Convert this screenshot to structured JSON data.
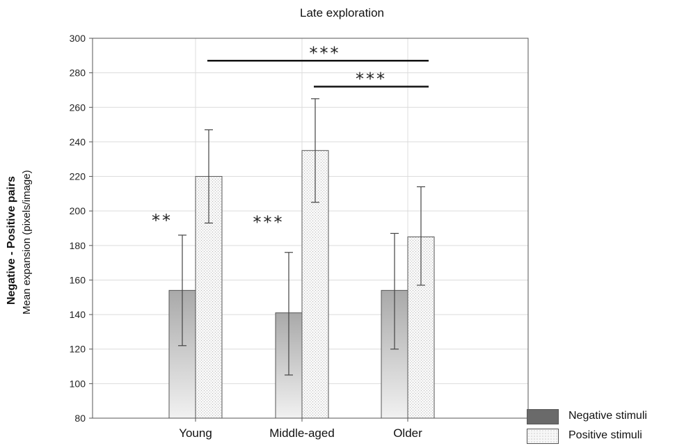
{
  "chart_data": {
    "type": "bar",
    "title": "Late exploration",
    "ylabel_line1": "Negative - Positive pairs",
    "ylabel_line2": "Mean expansion (pixels/image)",
    "xlabel": "",
    "categories": [
      "Young",
      "Middle-aged",
      "Older"
    ],
    "ylim": [
      80,
      300
    ],
    "yticks": [
      80,
      100,
      120,
      140,
      160,
      180,
      200,
      220,
      240,
      260,
      280,
      300
    ],
    "grid": true,
    "legend_position": "bottom-right",
    "series": [
      {
        "name": "Negative stimuli",
        "values": [
          154,
          141,
          154
        ],
        "error_low": [
          122,
          105,
          120
        ],
        "error_high": [
          186,
          176,
          187
        ],
        "color": "#666666"
      },
      {
        "name": "Positive stimuli",
        "values": [
          220,
          235,
          185
        ],
        "error_low": [
          193,
          205,
          157
        ],
        "error_high": [
          247,
          265,
          214
        ],
        "color": "#f2f2f2"
      }
    ],
    "annotations": [
      {
        "label": "**",
        "category": "Young",
        "y": 196
      },
      {
        "label": "***",
        "category": "Middle-aged",
        "y": 195
      },
      {
        "label": "***",
        "from": "Young",
        "to": "Older",
        "y": 287
      },
      {
        "label": "***",
        "from": "Middle-aged",
        "to": "Older",
        "y": 272
      }
    ]
  }
}
